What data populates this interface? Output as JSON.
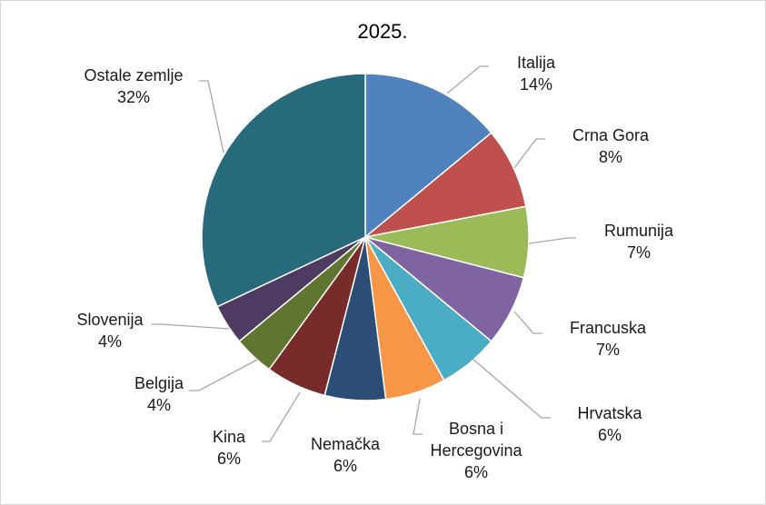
{
  "chart_data": {
    "type": "pie",
    "title": "2025.",
    "start_angle_deg": 0,
    "direction": "clockwise",
    "legend": "none",
    "slices": [
      {
        "label": "Italija",
        "percent_label": "14%",
        "value": 14,
        "color": "#4f81bd"
      },
      {
        "label": "Crna Gora",
        "percent_label": "8%",
        "value": 8,
        "color": "#c0504d"
      },
      {
        "label": "Rumunija",
        "percent_label": "7%",
        "value": 7,
        "color": "#9bbb59"
      },
      {
        "label": "Francuska",
        "percent_label": "7%",
        "value": 7,
        "color": "#8064a2"
      },
      {
        "label": "Hrvatska",
        "percent_label": "6%",
        "value": 6,
        "color": "#4bacc6"
      },
      {
        "label": "Bosna i Hercegovina",
        "label_lines": [
          "Bosna i",
          "Hercegovina"
        ],
        "percent_label": "6%",
        "value": 6,
        "color": "#f79646"
      },
      {
        "label": "Nemačka",
        "percent_label": "6%",
        "value": 6,
        "color": "#2c4d75"
      },
      {
        "label": "Kina",
        "percent_label": "6%",
        "value": 6,
        "color": "#772c2a"
      },
      {
        "label": "Belgija",
        "percent_label": "4%",
        "value": 4,
        "color": "#5f7530"
      },
      {
        "label": "Slovenija",
        "percent_label": "4%",
        "value": 4,
        "color": "#4d3b62"
      },
      {
        "label": "Ostale zemlje",
        "percent_label": "32%",
        "value": 32,
        "color": "#276a7c"
      }
    ]
  }
}
